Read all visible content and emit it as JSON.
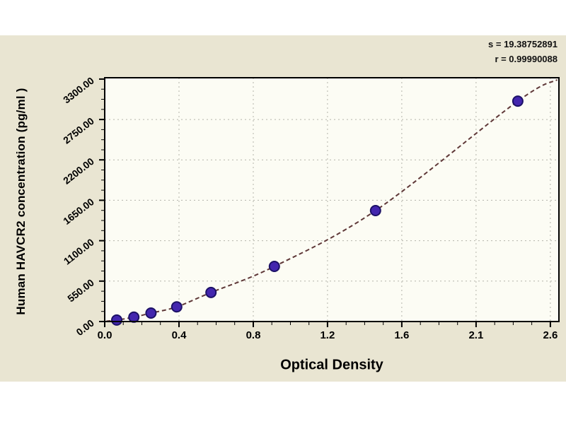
{
  "stats": {
    "s_line": "s = 19.38752891",
    "r_line": "r = 0.99990088"
  },
  "chart_data": {
    "type": "scatter",
    "title": "",
    "xlabel": "Optical Density",
    "ylabel": "Human HAVCR2 concentration (pg/ml )",
    "x_tick_labels": [
      "0.0",
      "0.4",
      "0.8",
      "1.2",
      "1.6",
      "2.1",
      "2.6"
    ],
    "y_tick_labels": [
      "0.00",
      "550.00",
      "1100.00",
      "1650.00",
      "2200.00",
      "2750.00",
      "3300.00"
    ],
    "xlim": [
      0,
      2.65
    ],
    "ylim": [
      0,
      3318
    ],
    "x_major_max": 2.6,
    "y_major_max": 3300,
    "majors_x": 6,
    "majors_y": 6,
    "minor_per_major": 4,
    "grid": "dashed",
    "legend": "none",
    "points": [
      {
        "od": 0.07,
        "conc": 20
      },
      {
        "od": 0.17,
        "conc": 60
      },
      {
        "od": 0.27,
        "conc": 115
      },
      {
        "od": 0.42,
        "conc": 200
      },
      {
        "od": 0.62,
        "conc": 395
      },
      {
        "od": 0.99,
        "conc": 750
      },
      {
        "od": 1.58,
        "conc": 1510
      },
      {
        "od": 2.41,
        "conc": 3000
      }
    ],
    "fit": {
      "s": "19.38752891",
      "r": "0.99990088",
      "curve_start": {
        "od": 0.01,
        "conc": 5
      },
      "curve_end": {
        "od": 2.64,
        "conc": 3290
      }
    },
    "colors": {
      "panel_bg": "#e9e5d2",
      "plot_bg": "#fcfcf4",
      "grid": "#b4b4aa",
      "axis": "#000000",
      "curve": "#5f3838",
      "point_fill": "#4326ae",
      "point_stroke": "#1c1166",
      "text": "#000000"
    }
  }
}
